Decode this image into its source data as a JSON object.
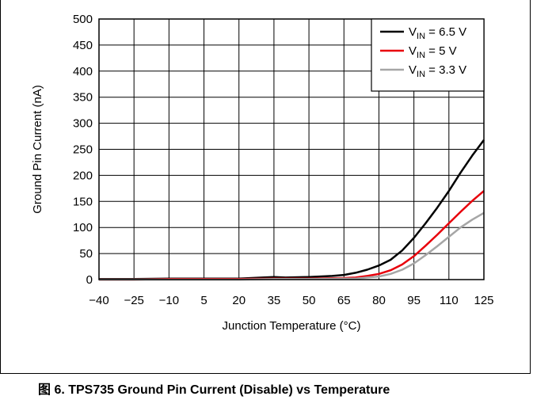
{
  "caption": {
    "figure_label": "图 6. TPS735 Ground Pin Current (Disable) vs Temperature"
  },
  "chart_data": {
    "type": "line",
    "title": "",
    "xlabel": "Junction Temperature (°C)",
    "ylabel": "Ground Pin Current (nA)",
    "xlim": [
      -40,
      125
    ],
    "ylim": [
      0,
      500
    ],
    "x_ticks": [
      -40,
      -25,
      -10,
      5,
      20,
      35,
      50,
      65,
      80,
      95,
      110,
      125
    ],
    "x_tick_labels": [
      "−40",
      "−25",
      "−10",
      "5",
      "20",
      "35",
      "50",
      "65",
      "80",
      "95",
      "110",
      "125"
    ],
    "y_ticks": [
      0,
      50,
      100,
      150,
      200,
      250,
      300,
      350,
      400,
      450,
      500
    ],
    "y_tick_labels": [
      "0",
      "50",
      "100",
      "150",
      "200",
      "250",
      "300",
      "350",
      "400",
      "450",
      "500"
    ],
    "grid": true,
    "legend_position": "top-right",
    "series": [
      {
        "name": "V_IN = 6.5 V",
        "legend_main": "V",
        "legend_sub": "IN",
        "legend_rest": " = 6.5 V",
        "color": "#000000",
        "x": [
          -40,
          -25,
          -10,
          5,
          20,
          30,
          35,
          40,
          50,
          60,
          65,
          70,
          75,
          80,
          85,
          90,
          95,
          100,
          105,
          110,
          115,
          120,
          125
        ],
        "y": [
          1,
          1,
          2,
          2,
          2,
          4,
          5,
          4,
          5,
          7,
          9,
          13,
          19,
          27,
          38,
          56,
          80,
          108,
          138,
          170,
          205,
          238,
          268
        ]
      },
      {
        "name": "V_IN = 5 V",
        "legend_main": "V",
        "legend_sub": "IN",
        "legend_rest": " = 5 V",
        "color": "#e8000b",
        "x": [
          -40,
          -25,
          -10,
          5,
          20,
          35,
          50,
          65,
          70,
          75,
          80,
          85,
          90,
          95,
          100,
          105,
          110,
          115,
          120,
          125
        ],
        "y": [
          0,
          0,
          1,
          1,
          1,
          2,
          2,
          3,
          4,
          7,
          11,
          18,
          29,
          45,
          65,
          86,
          108,
          130,
          151,
          170
        ]
      },
      {
        "name": "V_IN = 3.3 V",
        "legend_main": "V",
        "legend_sub": "IN",
        "legend_rest": " = 3.3 V",
        "color": "#a6a6a6",
        "x": [
          -40,
          -25,
          -10,
          5,
          20,
          35,
          50,
          65,
          70,
          75,
          80,
          85,
          90,
          95,
          100,
          105,
          110,
          115,
          120,
          125
        ],
        "y": [
          0,
          0,
          0,
          0,
          0,
          1,
          1,
          2,
          2,
          4,
          6,
          11,
          19,
          31,
          47,
          64,
          82,
          100,
          115,
          128
        ]
      }
    ]
  }
}
